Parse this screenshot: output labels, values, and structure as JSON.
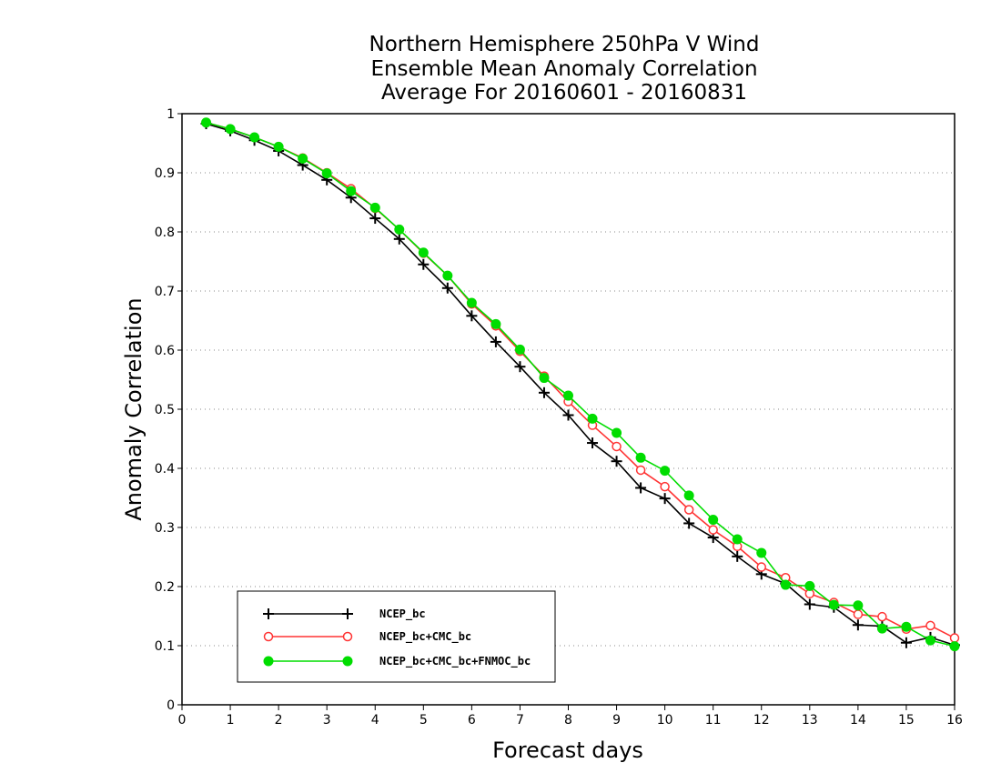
{
  "chart_data": {
    "type": "line",
    "title": [
      "Northern Hemisphere 250hPa V Wind",
      "Ensemble Mean Anomaly Correlation",
      "Average For 20160601 - 20160831"
    ],
    "xlabel": "Forecast days",
    "ylabel": "Anomaly Correlation",
    "xlim": [
      0,
      16
    ],
    "ylim": [
      0,
      1
    ],
    "xticks": [
      "0",
      "1",
      "2",
      "3",
      "4",
      "5",
      "6",
      "7",
      "8",
      "9",
      "10",
      "11",
      "12",
      "13",
      "14",
      "15",
      "16"
    ],
    "yticks": [
      "0",
      "0.1",
      "0.2",
      "0.3",
      "0.4",
      "0.5",
      "0.6",
      "0.7",
      "0.8",
      "0.9",
      "1"
    ],
    "grid": "horizontal dotted",
    "legend_position": "bottom-left",
    "x": [
      0.5,
      1,
      1.5,
      2,
      2.5,
      3,
      3.5,
      4,
      4.5,
      5,
      5.5,
      6,
      6.5,
      7,
      7.5,
      8,
      8.5,
      9,
      9.5,
      10,
      10.5,
      11,
      11.5,
      12,
      12.5,
      13,
      13.5,
      14,
      14.5,
      15,
      15.5,
      16
    ],
    "series": [
      {
        "name": "NCEP_bc",
        "color": "#000000",
        "marker": "plus",
        "values": [
          0.983,
          0.971,
          0.955,
          0.937,
          0.913,
          0.888,
          0.858,
          0.823,
          0.788,
          0.745,
          0.705,
          0.658,
          0.614,
          0.572,
          0.528,
          0.49,
          0.443,
          0.412,
          0.367,
          0.349,
          0.307,
          0.283,
          0.251,
          0.221,
          0.205,
          0.17,
          0.165,
          0.135,
          0.133,
          0.105,
          0.114,
          0.101
        ]
      },
      {
        "name": "NCEP_bc+CMC_bc",
        "color": "#ff3333",
        "marker": "open-circle",
        "values": [
          0.985,
          0.974,
          0.96,
          0.944,
          0.925,
          0.9,
          0.873,
          0.84,
          0.804,
          0.764,
          0.726,
          0.678,
          0.641,
          0.598,
          0.556,
          0.513,
          0.473,
          0.437,
          0.397,
          0.369,
          0.33,
          0.296,
          0.268,
          0.233,
          0.215,
          0.188,
          0.173,
          0.153,
          0.149,
          0.128,
          0.134,
          0.113
        ]
      },
      {
        "name": "NCEP_bc+CMC_bc+FNMOC_bc",
        "color": "#00dd00",
        "marker": "filled-circle",
        "values": [
          0.985,
          0.974,
          0.96,
          0.944,
          0.924,
          0.899,
          0.869,
          0.841,
          0.804,
          0.765,
          0.726,
          0.68,
          0.644,
          0.601,
          0.553,
          0.523,
          0.484,
          0.46,
          0.418,
          0.396,
          0.354,
          0.313,
          0.28,
          0.257,
          0.203,
          0.201,
          0.169,
          0.168,
          0.129,
          0.132,
          0.109,
          0.099
        ]
      }
    ]
  }
}
